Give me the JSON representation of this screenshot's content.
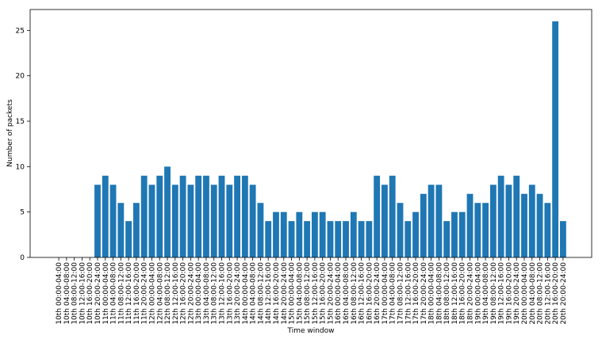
{
  "chart_data": {
    "type": "bar",
    "x_label": "Time window",
    "y_label": "Number of packets",
    "categories": [
      "10th 00:00-04:00",
      "10th 04:00-08:00",
      "10th 08:00-12:00",
      "10th 12:00-16:00",
      "10th 16:00-20:00",
      "10th 20:00-24:00",
      "11th 00:00-04:00",
      "11th 04:00-08:00",
      "11th 08:00-12:00",
      "11th 12:00-16:00",
      "11th 16:00-20:00",
      "11th 20:00-24:00",
      "12th 00:00-04:00",
      "12th 04:00-08:00",
      "12th 08:00-12:00",
      "12th 12:00-16:00",
      "12th 16:00-20:00",
      "12th 20:00-24:00",
      "13th 00:00-04:00",
      "13th 04:00-08:00",
      "13th 08:00-12:00",
      "13th 12:00-16:00",
      "13th 16:00-20:00",
      "13th 20:00-24:00",
      "14th 00:00-04:00",
      "14th 04:00-08:00",
      "14th 08:00-12:00",
      "14th 12:00-16:00",
      "14th 16:00-20:00",
      "14th 20:00-24:00",
      "15th 00:00-04:00",
      "15th 04:00-08:00",
      "15th 08:00-12:00",
      "15th 12:00-16:00",
      "15th 16:00-20:00",
      "15th 20:00-24:00",
      "16th 00:00-04:00",
      "16th 04:00-08:00",
      "16th 08:00-12:00",
      "16th 12:00-16:00",
      "16th 16:00-20:00",
      "16th 20:00-24:00",
      "17th 00:00-04:00",
      "17th 04:00-08:00",
      "17th 08:00-12:00",
      "17th 12:00-16:00",
      "17th 16:00-20:00",
      "17th 20:00-24:00",
      "18th 00:00-04:00",
      "18th 04:00-08:00",
      "18th 08:00-12:00",
      "18th 12:00-16:00",
      "18th 16:00-20:00",
      "18th 20:00-24:00",
      "19th 00:00-04:00",
      "19th 04:00-08:00",
      "19th 08:00-12:00",
      "19th 12:00-16:00",
      "19th 16:00-20:00",
      "19th 20:00-24:00",
      "20th 00:00-04:00",
      "20th 04:00-08:00",
      "20th 08:00-12:00",
      "20th 12:00-16:00",
      "20th 16:00-20:00",
      "20th 20:00-24:00"
    ],
    "values": [
      0,
      0,
      0,
      0,
      0,
      8,
      9,
      8,
      6,
      4,
      6,
      9,
      8,
      9,
      10,
      8,
      9,
      8,
      9,
      9,
      8,
      9,
      8,
      9,
      9,
      8,
      6,
      4,
      5,
      5,
      4,
      5,
      4,
      5,
      5,
      4,
      4,
      4,
      5,
      4,
      4,
      9,
      8,
      9,
      6,
      4,
      5,
      7,
      8,
      8,
      4,
      5,
      5,
      7,
      6,
      6,
      8,
      9,
      8,
      9,
      7,
      8,
      7,
      6,
      26,
      4
    ],
    "color": "#1f77b4",
    "ylim": [
      0,
      27.3
    ],
    "yticks": [
      0,
      5,
      10,
      15,
      20,
      25
    ],
    "grid": false
  }
}
